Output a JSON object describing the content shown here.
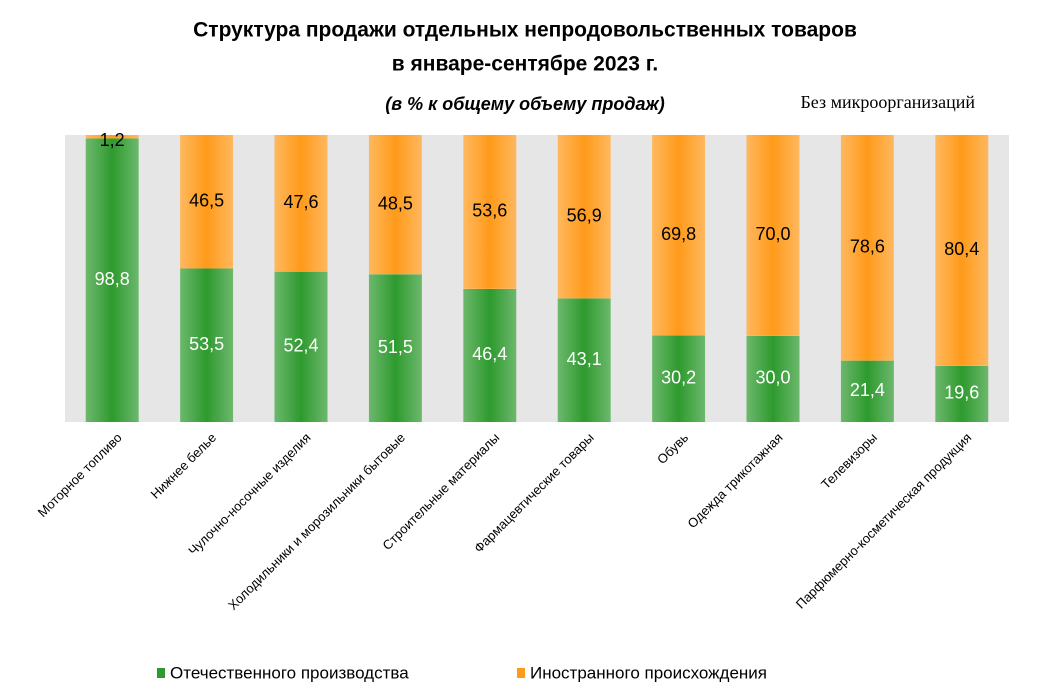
{
  "chart_data": {
    "type": "stacked_bar",
    "title": [
      "Структура продажи отдельных непродовольственных товаров",
      "в январе-сентябре 2023 г."
    ],
    "subtitle": "(в % к общему объему продаж)",
    "note": "Без микроорганизаций",
    "categories": [
      "Моторное топливо",
      "Нижнее белье",
      "Чулочно-носочные изделия",
      "Холодильники и морозильники бытовые",
      "Строительные материалы",
      "Фармацевтические товары",
      "Обувь",
      "Одежда трикотажная",
      "Телевизоры",
      "Парфюмерно-косметическая продукция"
    ],
    "series": [
      {
        "name": "Отечественного производства",
        "color": "#2e9a2e",
        "values": [
          98.8,
          53.5,
          52.4,
          51.5,
          46.4,
          43.1,
          30.2,
          30.0,
          21.4,
          19.6
        ],
        "value_labels": [
          "98,8",
          "53,5",
          "52,4",
          "51,5",
          "46,4",
          "43,1",
          "30,2",
          "30,0",
          "21,4",
          "19,6"
        ]
      },
      {
        "name": "Иностранного происхождения",
        "color": "#ff9a1a",
        "values": [
          1.2,
          46.5,
          47.6,
          48.5,
          53.6,
          56.9,
          69.8,
          70.0,
          78.6,
          80.4
        ],
        "value_labels": [
          "1,2",
          "46,5",
          "47,6",
          "48,5",
          "53,6",
          "56,9",
          "69,8",
          "70,0",
          "78,6",
          "80,4"
        ]
      }
    ],
    "ylim": [
      0,
      100
    ]
  }
}
